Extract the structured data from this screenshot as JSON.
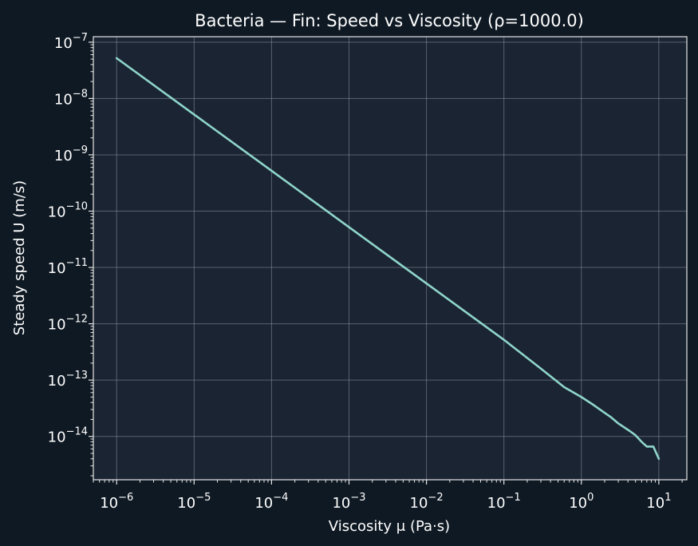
{
  "colors": {
    "figure_background": "#0f1923",
    "plot_background": "#1b2432",
    "axes_frame": "#e6e6e6",
    "grid": "#8a94a3",
    "text": "#ffffff",
    "series_line": "#8fd6cc"
  },
  "chart_data": {
    "type": "line",
    "title": "Bacteria — Fin: Speed vs Viscosity (ρ=1000.0)",
    "xlabel": "Viscosity μ (Pa·s)",
    "ylabel": "Steady speed U (m/s)",
    "xscale": "log",
    "yscale": "log",
    "xlim": [
      5e-07,
      23.0
    ],
    "ylim": [
      1.7e-15,
      1.25e-07
    ],
    "grid": true,
    "legend": false,
    "xticks": [
      {
        "value": 1e-06,
        "base": "10",
        "exp": "−6"
      },
      {
        "value": 1e-05,
        "base": "10",
        "exp": "−5"
      },
      {
        "value": 0.0001,
        "base": "10",
        "exp": "−4"
      },
      {
        "value": 0.001,
        "base": "10",
        "exp": "−3"
      },
      {
        "value": 0.01,
        "base": "10",
        "exp": "−2"
      },
      {
        "value": 0.1,
        "base": "10",
        "exp": "−1"
      },
      {
        "value": 1.0,
        "base": "10",
        "exp": "0"
      },
      {
        "value": 10.0,
        "base": "10",
        "exp": "1"
      }
    ],
    "yticks": [
      {
        "value": 1e-07,
        "base": "10",
        "exp": "−7"
      },
      {
        "value": 1e-08,
        "base": "10",
        "exp": "−8"
      },
      {
        "value": 1e-09,
        "base": "10",
        "exp": "−9"
      },
      {
        "value": 1e-10,
        "base": "10",
        "exp": "−10"
      },
      {
        "value": 1e-11,
        "base": "10",
        "exp": "−11"
      },
      {
        "value": 1e-12,
        "base": "10",
        "exp": "−12"
      },
      {
        "value": 1e-13,
        "base": "10",
        "exp": "−13"
      },
      {
        "value": 1e-14,
        "base": "10",
        "exp": "−14"
      }
    ],
    "series": [
      {
        "x": [
          1e-06,
          1e-05,
          0.0001,
          0.001,
          0.01,
          0.1,
          0.3,
          0.6,
          1.0,
          1.4,
          1.8,
          2.4,
          3.0,
          4.2,
          5.0,
          6.0,
          7.0,
          8.5,
          10.0
        ],
        "y": [
          5.2e-08,
          5.2e-09,
          5.2e-10,
          5.2e-11,
          5.2e-12,
          5.2e-13,
          1.6e-13,
          7.5e-14,
          5e-14,
          3.7e-14,
          2.9e-14,
          2.2e-14,
          1.7e-14,
          1.25e-14,
          1.05e-14,
          8e-15,
          6.6e-15,
          6.6e-15,
          4e-15
        ]
      }
    ]
  }
}
